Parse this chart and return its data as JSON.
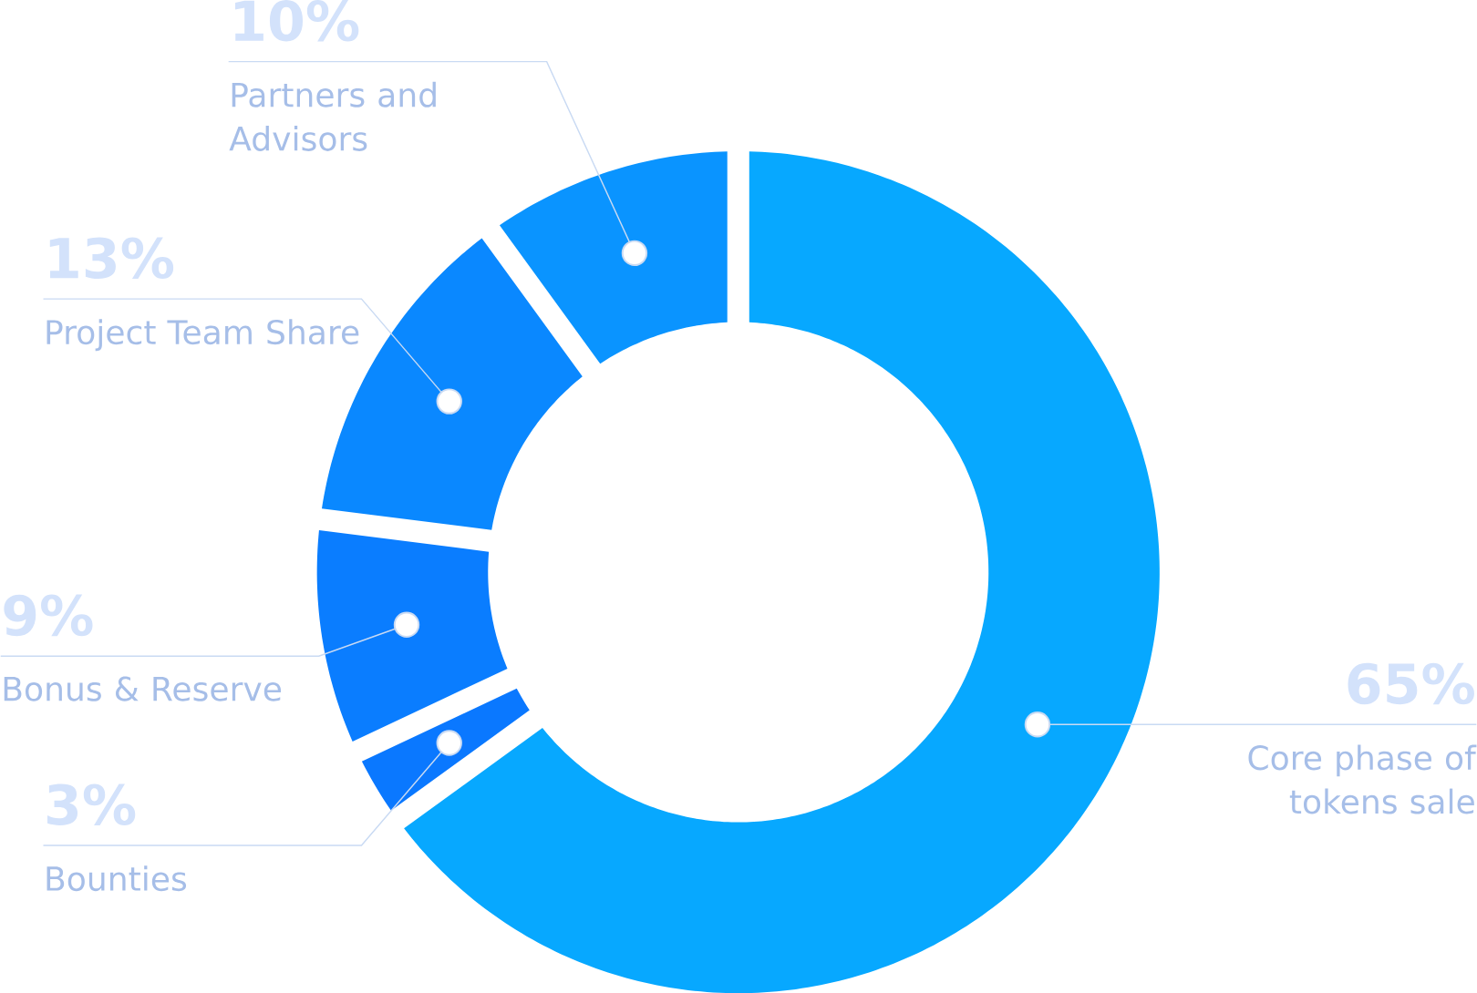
{
  "chart_data": {
    "type": "donut",
    "categories": [
      "Core phase of tokens sale",
      "Bounties",
      "Bonus & Reserve",
      "Project Team Share",
      "Partners and Advisors"
    ],
    "values": [
      65,
      3,
      9,
      13,
      10
    ],
    "value_labels": [
      "65%",
      "3%",
      "9%",
      "13%",
      "10%"
    ],
    "colors": [
      "#07a8ff",
      "#0a78ff",
      "#0a7dff",
      "#0a88ff",
      "#0a94ff"
    ]
  }
}
